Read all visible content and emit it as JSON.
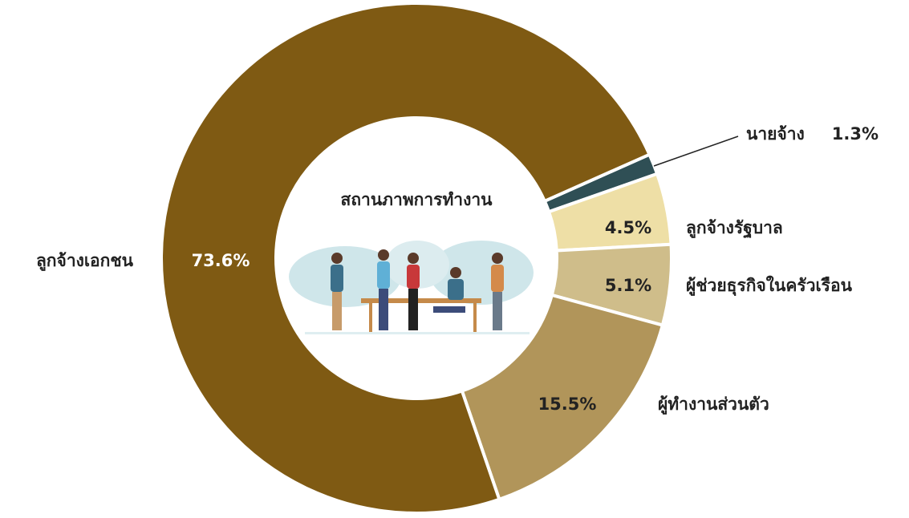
{
  "chart_data": {
    "type": "pie",
    "donut": true,
    "title": "สถานภาพการทำงาน",
    "categories": [
      "นายจ้าง",
      "ลูกจ้างรัฐบาล",
      "ผู้ช่วยธุรกิจในครัวเรือน",
      "ผู้ทำงานส่วนตัว",
      "ลูกจ้างเอกชน"
    ],
    "values": [
      1.3,
      4.5,
      5.1,
      15.5,
      73.6
    ],
    "value_labels": [
      "1.3%",
      "4.5%",
      "5.1%",
      "15.5%",
      "73.6%"
    ],
    "colors": [
      "#2f4f55",
      "#eedfa6",
      "#cfbd8a",
      "#b1955a",
      "#7f5a13"
    ]
  }
}
